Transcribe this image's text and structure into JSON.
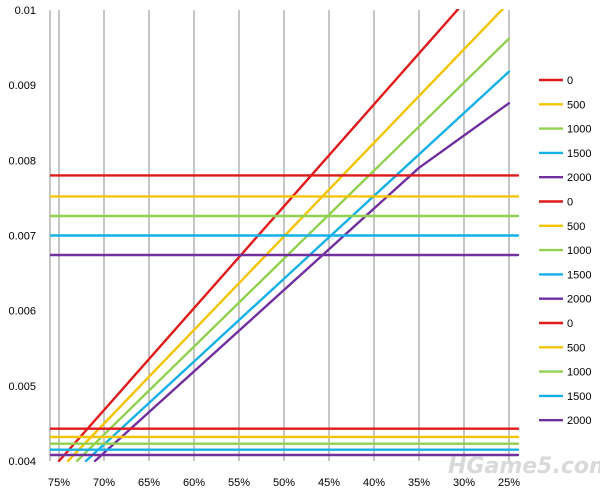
{
  "chart_data": {
    "type": "line",
    "title": "",
    "xlabel": "",
    "ylabel": "",
    "x_ticks": [
      "75%",
      "70%",
      "65%",
      "60%",
      "55%",
      "50%",
      "45%",
      "40%",
      "35%",
      "30%",
      "25%"
    ],
    "x_range": [
      0.76,
      0.24
    ],
    "y_ticks": [
      "0.004",
      "0.005",
      "0.006",
      "0.007",
      "0.008",
      "0.009",
      "0.01"
    ],
    "ylim": [
      0.004,
      0.01
    ],
    "grid": {
      "vertical": true,
      "horizontal": false
    },
    "legend_position": "right",
    "palette": {
      "0": "#e01a1a",
      "500": "#f5c400",
      "1000": "#92d050",
      "1500": "#16b0e8",
      "2000": "#7030a0"
    },
    "series": [
      {
        "name": "0",
        "color": "#e01a1a",
        "x": [
          0.75,
          0.3
        ],
        "y": [
          0.004,
          0.0101
        ]
      },
      {
        "name": "500",
        "color": "#f5c400",
        "x": [
          0.74,
          0.25
        ],
        "y": [
          0.004,
          0.0101
        ]
      },
      {
        "name": "1000",
        "color": "#92d050",
        "x": [
          0.73,
          0.25
        ],
        "y": [
          0.004,
          0.00962
        ]
      },
      {
        "name": "1500",
        "color": "#16b0e8",
        "x": [
          0.72,
          0.25
        ],
        "y": [
          0.004,
          0.00918
        ]
      },
      {
        "name": "2000",
        "color": "#7030a0",
        "x": [
          0.71,
          0.35,
          0.25
        ],
        "y": [
          0.004,
          0.0079,
          0.00876
        ]
      },
      {
        "name": "0",
        "color": "#e01a1a",
        "x": [
          0.76,
          0.24
        ],
        "y": [
          0.0078,
          0.0078
        ]
      },
      {
        "name": "500",
        "color": "#f5c400",
        "x": [
          0.76,
          0.24
        ],
        "y": [
          0.00752,
          0.00752
        ]
      },
      {
        "name": "1000",
        "color": "#92d050",
        "x": [
          0.76,
          0.24
        ],
        "y": [
          0.00726,
          0.00726
        ]
      },
      {
        "name": "1500",
        "color": "#16b0e8",
        "x": [
          0.76,
          0.24
        ],
        "y": [
          0.007,
          0.007
        ]
      },
      {
        "name": "2000",
        "color": "#7030a0",
        "x": [
          0.76,
          0.24
        ],
        "y": [
          0.00674,
          0.00674
        ]
      },
      {
        "name": "0",
        "color": "#e01a1a",
        "x": [
          0.76,
          0.24
        ],
        "y": [
          0.00443,
          0.00443
        ]
      },
      {
        "name": "500",
        "color": "#f5c400",
        "x": [
          0.76,
          0.24
        ],
        "y": [
          0.00432,
          0.00432
        ]
      },
      {
        "name": "1000",
        "color": "#92d050",
        "x": [
          0.76,
          0.24
        ],
        "y": [
          0.00423,
          0.00423
        ]
      },
      {
        "name": "1500",
        "color": "#16b0e8",
        "x": [
          0.76,
          0.24
        ],
        "y": [
          0.00415,
          0.00415
        ]
      },
      {
        "name": "2000",
        "color": "#7030a0",
        "x": [
          0.76,
          0.24
        ],
        "y": [
          0.00408,
          0.00408
        ]
      }
    ]
  },
  "watermark": "HGame5.com"
}
